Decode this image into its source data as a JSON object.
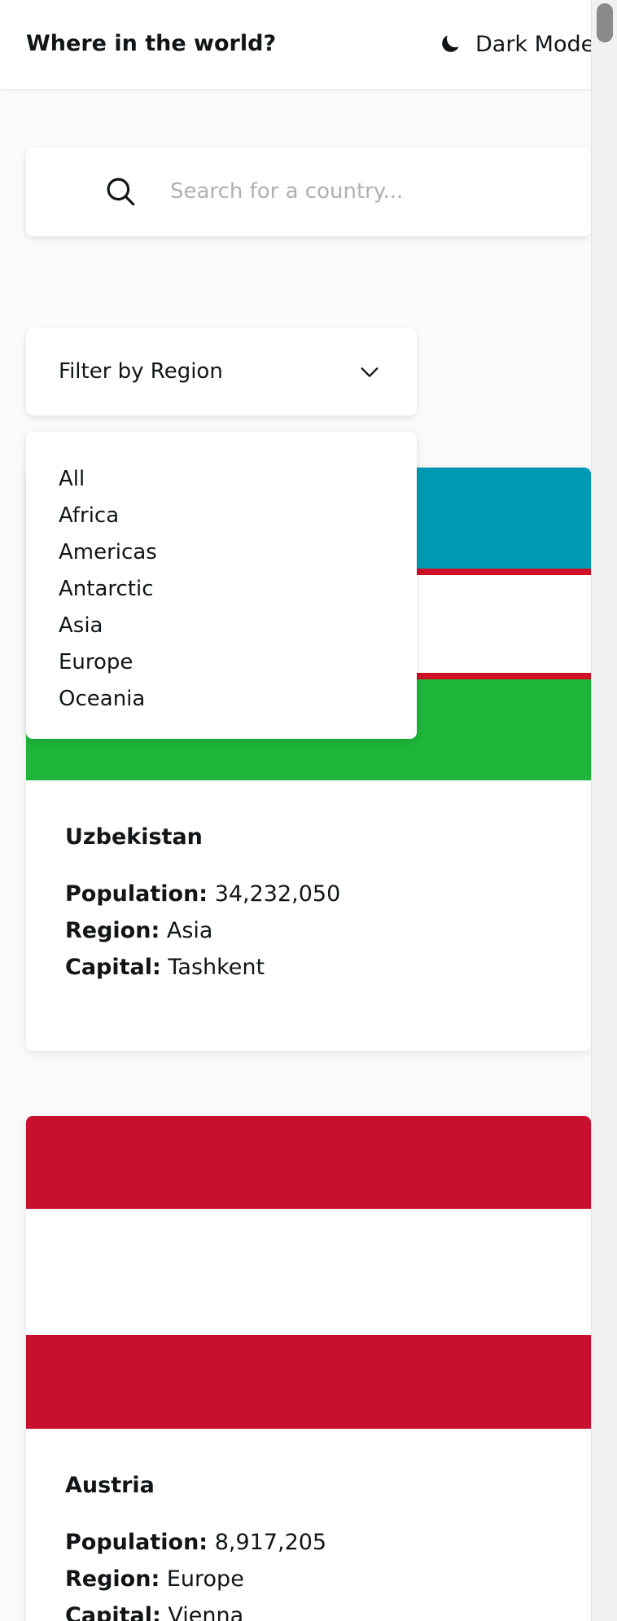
{
  "header": {
    "title": "Where in the world?",
    "dark_mode_label": "Dark Mode",
    "dark_mode_icon": "moon-icon"
  },
  "search": {
    "placeholder": "Search for a country...",
    "value": "",
    "icon": "search-icon"
  },
  "filter": {
    "label": "Filter by Region",
    "icon": "chevron-down-icon",
    "options": [
      "All",
      "Africa",
      "Americas",
      "Antarctic",
      "Asia",
      "Europe",
      "Oceania"
    ]
  },
  "labels": {
    "population": "Population:",
    "region": "Region:",
    "capital": "Capital:"
  },
  "countries": [
    {
      "name": "Uzbekistan",
      "population": "34,232,050",
      "region": "Asia",
      "capital": "Tashkent",
      "flag_colors": {
        "blue": "#0099B5",
        "white": "#FFFFFF",
        "red": "#CE1126",
        "green": "#1EB53A"
      }
    },
    {
      "name": "Austria",
      "population": "8,917,205",
      "region": "Europe",
      "capital": "Vienna",
      "flag_colors": {
        "red": "#C8102E",
        "white": "#FFFFFF"
      }
    }
  ],
  "colors": {
    "background": "#FAFAFA",
    "surface": "#FFFFFF",
    "text": "#111517",
    "placeholder": "#B0B0B0"
  }
}
